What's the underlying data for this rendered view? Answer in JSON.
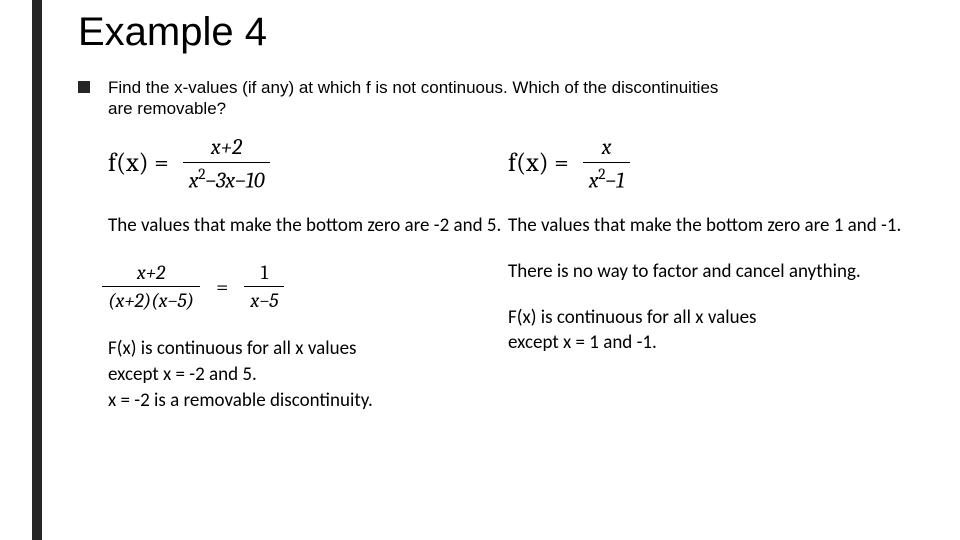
{
  "title": "Example 4",
  "prompt": "Find the x-values (if any) at which f is not continuous. Which of the discontinuities are removable?",
  "left": {
    "fn_label": "f(x) =",
    "num1": "x+2",
    "den1_a": "x",
    "den1_b": "−3x−10",
    "zeros_text": "The values that make the bottom zero are -2 and 5.",
    "mid_num": "x+2",
    "mid_den": "(x+2)(x−5)",
    "mid_rnum": "1",
    "mid_rden": "x−5",
    "conclusion_l1": "F(x) is continuous for all x values",
    "conclusion_l2": "except x = -2 and 5.",
    "conclusion_l3": "x = -2 is a removable discontinuity."
  },
  "right": {
    "fn_label": "f(x) =",
    "num1": "x",
    "den1_a": "x",
    "den1_b": "−1",
    "zeros_text": "The values that make the bottom zero are 1 and -1.",
    "factor_text": "There is no way to factor and cancel anything.",
    "conclusion_l1": "F(x) is continuous for all x values",
    "conclusion_l2": "except x = 1 and -1."
  },
  "colors": {
    "sidebar": "#262626",
    "text": "#000000",
    "background": "#ffffff"
  }
}
